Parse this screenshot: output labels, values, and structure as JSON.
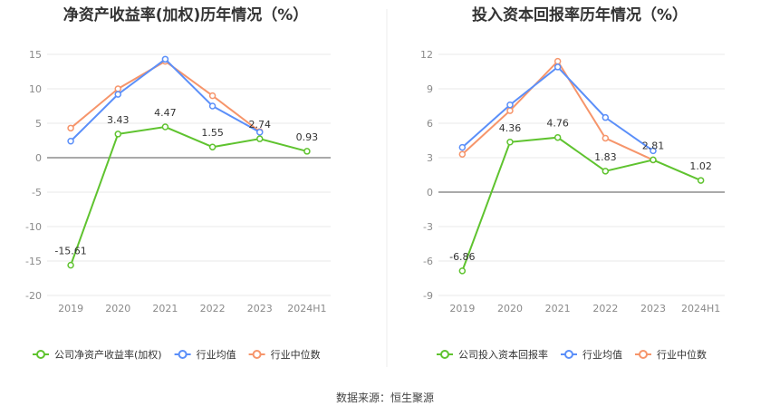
{
  "colors": {
    "company": "#5fc32f",
    "industry_avg": "#5b8ff9",
    "industry_median": "#f6956b"
  },
  "legend": {
    "industry_avg": "行业均值",
    "industry_median": "行业中位数"
  },
  "source": "数据来源：恒生聚源",
  "chart_data": [
    {
      "type": "line",
      "title": "净资产收益率(加权)历年情况（%）",
      "categories": [
        "2019",
        "2020",
        "2021",
        "2022",
        "2023",
        "2024H1"
      ],
      "ylim": [
        -20,
        15
      ],
      "yticks": [
        15,
        10,
        5,
        0,
        -5,
        -10,
        -15,
        -20
      ],
      "series": [
        {
          "key": "company",
          "name": "公司净资产收益率(加权)",
          "values": [
            -15.61,
            3.43,
            4.47,
            1.55,
            2.74,
            0.93
          ],
          "labels": [
            "-15.61",
            "3.43",
            "4.47",
            "1.55",
            "2.74",
            "0.93"
          ]
        },
        {
          "key": "industry_avg",
          "name": "行业均值",
          "values": [
            2.4,
            9.2,
            14.3,
            7.5,
            3.7,
            null
          ]
        },
        {
          "key": "industry_median",
          "name": "行业中位数",
          "values": [
            4.3,
            10.0,
            14.0,
            9.0,
            3.8,
            null
          ]
        }
      ],
      "grid": true,
      "legend_position": "bottom"
    },
    {
      "type": "line",
      "title": "投入资本回报率历年情况（%）",
      "categories": [
        "2019",
        "2020",
        "2021",
        "2022",
        "2023",
        "2024H1"
      ],
      "ylim": [
        -9,
        12
      ],
      "yticks": [
        12,
        9,
        6,
        3,
        0,
        -3,
        -6,
        -9
      ],
      "series": [
        {
          "key": "company",
          "name": "公司投入资本回报率",
          "values": [
            -6.86,
            4.36,
            4.76,
            1.83,
            2.81,
            1.02
          ],
          "labels": [
            "-6.86",
            "4.36",
            "4.76",
            "1.83",
            "2.81",
            "1.02"
          ]
        },
        {
          "key": "industry_avg",
          "name": "行业均值",
          "values": [
            3.9,
            7.6,
            10.9,
            6.5,
            3.6,
            null
          ]
        },
        {
          "key": "industry_median",
          "name": "行业中位数",
          "values": [
            3.3,
            7.1,
            11.4,
            4.7,
            2.8,
            null
          ]
        }
      ],
      "grid": true,
      "legend_position": "bottom"
    }
  ]
}
